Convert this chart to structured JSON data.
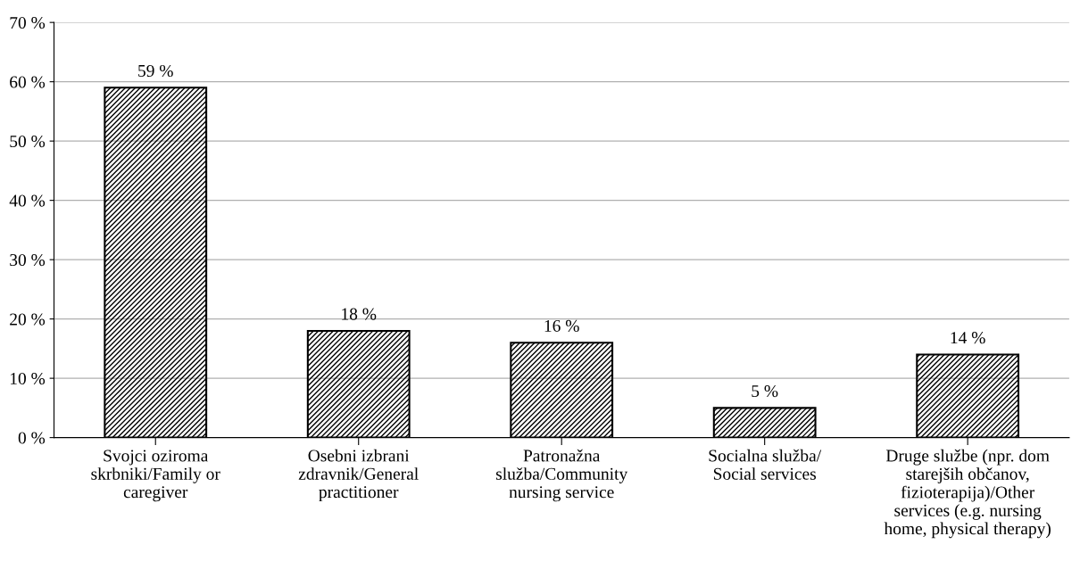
{
  "chart_data": {
    "type": "bar",
    "categories": [
      "Svojci oziroma\nskrbniki/Family or\ncaregiver",
      "Osebni izbrani\nzdravnik/General\npractitioner",
      "Patronažna\nslužba/Community\nnursing service",
      "Socialna služba/\nSocial services",
      "Druge službe (npr. dom\nstarejših občanov,\nfizioterapija)/Other\nservices (e.g. nursing\nhome, physical therapy)"
    ],
    "values": [
      59,
      18,
      16,
      5,
      14
    ],
    "value_labels": [
      "59 %",
      "18 %",
      "16 %",
      "5 %",
      "14 %"
    ],
    "color": "#000000",
    "ylim": [
      0,
      70
    ],
    "yticks": [
      {
        "value": 0,
        "label": "0 %"
      },
      {
        "value": 10,
        "label": "10 %"
      },
      {
        "value": 20,
        "label": "20 %"
      },
      {
        "value": 30,
        "label": "30 %"
      },
      {
        "value": 40,
        "label": "40 %"
      },
      {
        "value": 50,
        "label": "50 %"
      },
      {
        "value": 60,
        "label": "60 %"
      },
      {
        "value": 70,
        "label": "70 %"
      }
    ],
    "grid": "y"
  }
}
